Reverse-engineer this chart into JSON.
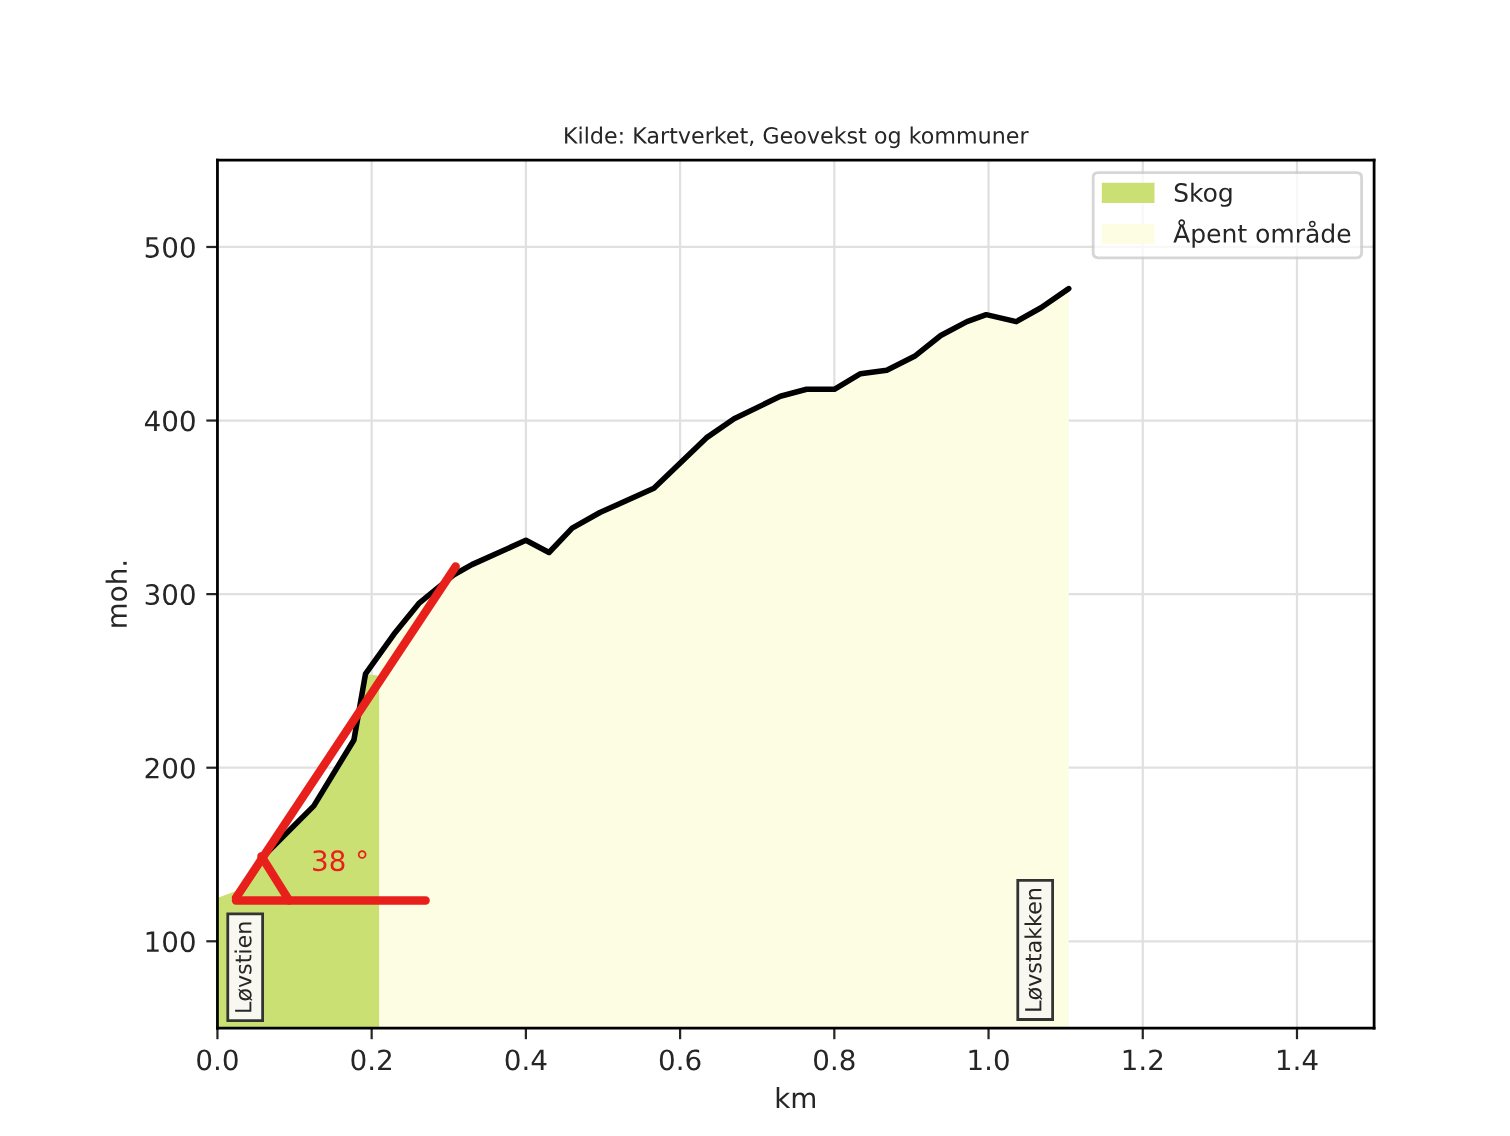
{
  "chart_data": {
    "type": "area",
    "title": "Kilde: Kartverket, Geovekst og kommuner",
    "xlabel": "km",
    "ylabel": "moh.",
    "series": [
      {
        "name": "Skog",
        "color": "#cbe072",
        "x": [
          0.0,
          0.03,
          0.062,
          0.125,
          0.177,
          0.192,
          0.21
        ],
        "values": [
          125,
          130,
          150,
          178,
          216,
          254,
          253
        ]
      },
      {
        "name": "Åpent område",
        "color": "#fdfde4",
        "x": [
          0.21,
          0.229,
          0.262,
          0.306,
          0.33,
          0.4,
          0.43,
          0.46,
          0.496,
          0.566,
          0.634,
          0.67,
          0.73,
          0.764,
          0.8,
          0.834,
          0.868,
          0.904,
          0.938,
          0.972,
          0.997,
          1.036,
          1.068,
          1.104
        ],
        "values": [
          268,
          277,
          295,
          311,
          317,
          331,
          324,
          338,
          347,
          361,
          390,
          401,
          414,
          418,
          418,
          427,
          429,
          437,
          449,
          457,
          461,
          457,
          465,
          476
        ]
      },
      {
        "type": "line",
        "color": "#000000",
        "x": [
          0.062,
          0.125,
          0.177,
          0.192,
          0.229,
          0.262,
          0.306,
          0.33,
          0.4,
          0.43,
          0.46,
          0.496,
          0.566,
          0.634,
          0.67,
          0.73,
          0.764,
          0.8,
          0.834,
          0.868,
          0.904,
          0.938,
          0.972,
          0.997,
          1.036,
          1.068,
          1.104
        ],
        "values": [
          150,
          178,
          216,
          254,
          277,
          295,
          311,
          317,
          331,
          324,
          338,
          347,
          361,
          390,
          401,
          414,
          418,
          418,
          427,
          429,
          437,
          449,
          457,
          461,
          457,
          465,
          476
        ]
      }
    ],
    "xlim": [
      0,
      1.5
    ],
    "ylim": [
      50,
      550
    ],
    "xticks": [
      {
        "value": 0,
        "label": "0.0"
      },
      {
        "value": 0.2,
        "label": "0.2"
      },
      {
        "value": 0.4,
        "label": "0.4"
      },
      {
        "value": 0.6,
        "label": "0.6"
      },
      {
        "value": 0.8,
        "label": "0.8"
      },
      {
        "value": 1.0,
        "label": "1.0"
      },
      {
        "value": 1.2,
        "label": "1.2"
      },
      {
        "value": 1.4,
        "label": "1.4"
      }
    ],
    "yticks": [
      100,
      200,
      300,
      400,
      500
    ],
    "grid": true,
    "legend": "top right",
    "annotations": [
      {
        "text": "38 °",
        "x": 0.024,
        "y": 125
      },
      {
        "text": "Løvstien",
        "x": 0.03,
        "y": 130
      },
      "Løvstakken"
    ]
  }
}
